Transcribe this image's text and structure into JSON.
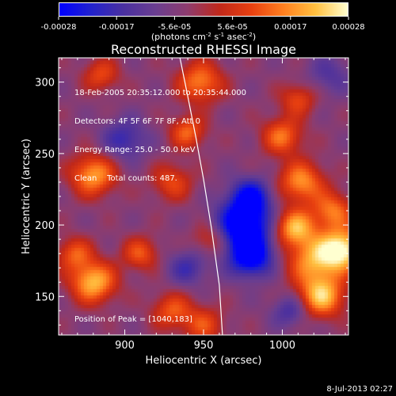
{
  "colorbar": {
    "ticks": [
      "-0.00028",
      "-0.00017",
      "-5.6e-05",
      "5.6e-05",
      "0.00017",
      "0.00028"
    ],
    "unit_prefix": "(photons cm",
    "unit_exp1": "-2",
    "unit_mid": " s",
    "unit_exp2": "-1",
    "unit_mid2": " asec",
    "unit_exp3": "-2",
    "unit_suffix": ")",
    "colors": [
      "#0000ff",
      "#2222cc",
      "#4a30a0",
      "#6a3e90",
      "#8e3c6e",
      "#c0281a",
      "#e84010",
      "#ff8020",
      "#ffc040",
      "#ffffd0"
    ]
  },
  "chart_data": {
    "type": "heatmap",
    "title": "Reconstructed RHESSI Image",
    "xlabel": "Heliocentric X (arcsec)",
    "ylabel": "Heliocentric Y (arcsec)",
    "xlim": [
      858,
      1042
    ],
    "ylim": [
      123,
      317
    ],
    "x_ticks": [
      900,
      950,
      1000
    ],
    "y_ticks": [
      150,
      200,
      250,
      300
    ],
    "annotations": [
      "18-Feb-2005 20:35:12.000 to 20:35:44.000",
      "Detectors: 4F 5F 6F 7F 8F, Att 0",
      "Energy Range: 25.0 - 50.0 keV",
      "Clean    Total counts: 487."
    ],
    "peak_label": "Position of Peak = [1040,183]",
    "peak": [
      1040,
      183
    ],
    "limb_curve_x": [
      935,
      940,
      945,
      950,
      955,
      960,
      962
    ],
    "limb_curve_y": [
      317,
      290,
      262,
      232,
      198,
      158,
      123
    ],
    "sources": [
      {
        "x": 1038,
        "y": 183,
        "amp": 1.0,
        "sigma": 10
      },
      {
        "x": 1020,
        "y": 175,
        "amp": 0.7,
        "sigma": 12
      },
      {
        "x": 975,
        "y": 200,
        "amp": -1.0,
        "sigma": 12
      },
      {
        "x": 980,
        "y": 178,
        "amp": -0.9,
        "sigma": 10
      },
      {
        "x": 980,
        "y": 220,
        "amp": -0.7,
        "sigma": 9
      },
      {
        "x": 1008,
        "y": 198,
        "amp": 0.8,
        "sigma": 9
      },
      {
        "x": 1012,
        "y": 230,
        "amp": 0.7,
        "sigma": 10
      },
      {
        "x": 1000,
        "y": 262,
        "amp": 0.6,
        "sigma": 9
      },
      {
        "x": 1010,
        "y": 288,
        "amp": 0.45,
        "sigma": 8
      },
      {
        "x": 940,
        "y": 265,
        "amp": 0.55,
        "sigma": 8
      },
      {
        "x": 948,
        "y": 300,
        "amp": 0.65,
        "sigma": 10
      },
      {
        "x": 930,
        "y": 230,
        "amp": 0.45,
        "sigma": 9
      },
      {
        "x": 880,
        "y": 235,
        "amp": 0.75,
        "sigma": 10
      },
      {
        "x": 880,
        "y": 160,
        "amp": 0.85,
        "sigma": 10
      },
      {
        "x": 868,
        "y": 180,
        "amp": 0.5,
        "sigma": 8
      },
      {
        "x": 910,
        "y": 180,
        "amp": 0.5,
        "sigma": 8
      },
      {
        "x": 930,
        "y": 140,
        "amp": 0.5,
        "sigma": 9
      },
      {
        "x": 950,
        "y": 130,
        "amp": 0.45,
        "sigma": 9
      },
      {
        "x": 885,
        "y": 305,
        "amp": 0.45,
        "sigma": 8
      },
      {
        "x": 1025,
        "y": 150,
        "amp": 0.85,
        "sigma": 10
      },
      {
        "x": 1032,
        "y": 210,
        "amp": 0.6,
        "sigma": 9
      },
      {
        "x": 955,
        "y": 190,
        "amp": 0.4,
        "sigma": 8
      },
      {
        "x": 900,
        "y": 260,
        "amp": -0.45,
        "sigma": 10
      },
      {
        "x": 940,
        "y": 170,
        "amp": -0.4,
        "sigma": 9
      },
      {
        "x": 1005,
        "y": 140,
        "amp": -0.4,
        "sigma": 8
      },
      {
        "x": 1030,
        "y": 305,
        "amp": -0.3,
        "sigma": 10
      }
    ]
  },
  "footer": {
    "timestamp": "8-Jul-2013 02:27"
  }
}
